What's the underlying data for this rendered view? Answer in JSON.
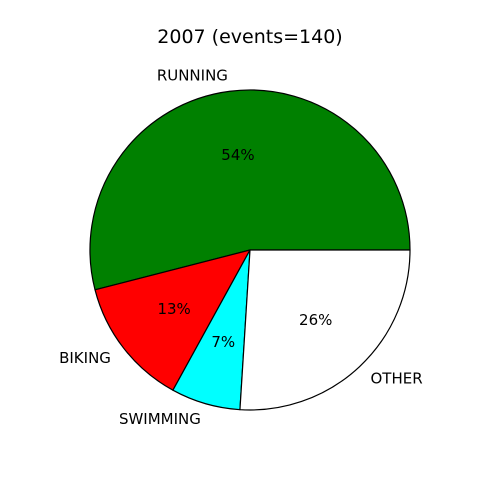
{
  "chart_data": {
    "type": "pie",
    "title": "2007 (events=140)",
    "categories": [
      "RUNNING",
      "BIKING",
      "SWIMMING",
      "OTHER"
    ],
    "values": [
      54,
      13,
      7,
      26
    ],
    "value_labels": [
      "54%",
      "13%",
      "7%",
      "26%"
    ],
    "colors": [
      "#008000",
      "#ff0000",
      "#00ffff",
      "#ffffff"
    ],
    "start_angle_deg": 0,
    "direction": "counterclockwise",
    "legend": "none"
  }
}
